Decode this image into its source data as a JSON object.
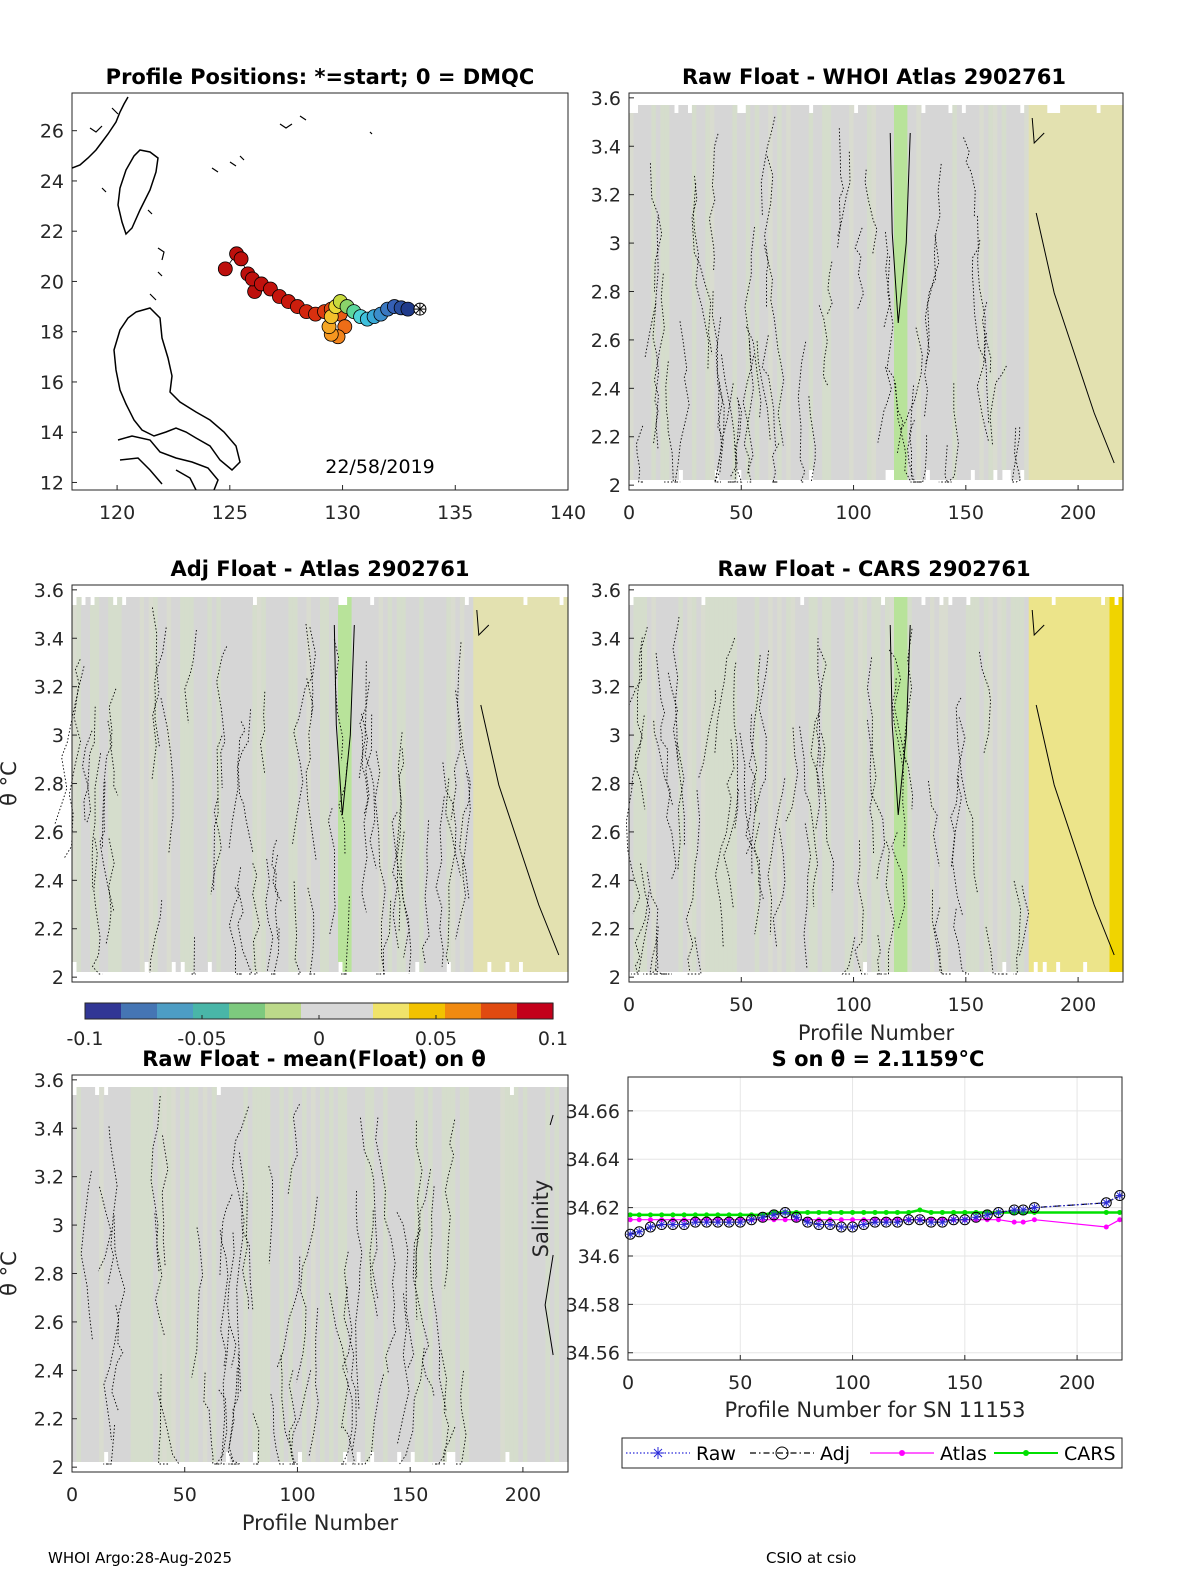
{
  "footer": {
    "left": "WHOI Argo:28-Aug-2025",
    "right": "CSIO at csio"
  },
  "colorbar": {
    "ticks": [
      "-0.1",
      "-0.05",
      "0",
      "0.05",
      "0.1"
    ],
    "range": [
      -0.1,
      0.1
    ],
    "colors": [
      "#313695",
      "#4575b4",
      "#4d9dc4",
      "#49b6a8",
      "#7dc97e",
      "#bcd98a",
      "#d8d8d8",
      "#d8d8d8",
      "#f0e36a",
      "#f2c200",
      "#f08a10",
      "#e04a10",
      "#c3001a"
    ]
  },
  "chart_data": [
    {
      "id": "positions",
      "type": "scatter",
      "title": "Profile Positions: *=start; 0 = DMQC",
      "xlim": [
        118,
        140
      ],
      "ylim": [
        11.7,
        27.5
      ],
      "xticks": [
        "120",
        "125",
        "130",
        "135",
        "140"
      ],
      "yticks": [
        "12",
        "14",
        "16",
        "18",
        "20",
        "22",
        "24",
        "26"
      ],
      "annotation": "22/58/2019",
      "track": {
        "lon": [
          132.9,
          132.6,
          132.3,
          132.0,
          131.7,
          131.4,
          131.1,
          130.8,
          130.5,
          130.2,
          129.9,
          129.7,
          129.5,
          129.4,
          129.5,
          129.8,
          130.1,
          129.9,
          129.5,
          129.2,
          128.8,
          128.4,
          128.0,
          127.6,
          127.2,
          126.8,
          126.4,
          126.0,
          125.8,
          126.1,
          125.5,
          125.3,
          124.8
        ],
        "lat": [
          18.9,
          18.95,
          19.0,
          18.9,
          18.7,
          18.6,
          18.5,
          18.6,
          18.8,
          19.0,
          19.2,
          19.0,
          18.6,
          18.2,
          17.9,
          17.8,
          18.2,
          18.7,
          18.9,
          18.8,
          18.7,
          18.8,
          19.0,
          19.2,
          19.4,
          19.7,
          19.9,
          20.1,
          20.3,
          19.6,
          20.9,
          21.1,
          20.5
        ],
        "colors": [
          "#1f3a8a",
          "#2a4fa0",
          "#3560b5",
          "#3a78c0",
          "#3b8fcc",
          "#3aa9d6",
          "#3ec0dc",
          "#4dd3d6",
          "#5bd79c",
          "#8ad36a",
          "#c7da3e",
          "#e9d836",
          "#f3c02b",
          "#f5a623",
          "#f59720",
          "#f2841c",
          "#ee6d17",
          "#e95b14",
          "#e44a12",
          "#de3c10",
          "#d8300f",
          "#d2260e",
          "#cc1e0d",
          "#c8180d",
          "#c5150d",
          "#c2120d",
          "#c0110d",
          "#be100d",
          "#bd100d",
          "#bd100d",
          "#bd100d",
          "#bd100d",
          "#bd100d"
        ]
      }
    },
    {
      "id": "raw_whoi",
      "type": "heatmap",
      "title": "Raw Float - WHOI Atlas  2902761",
      "xlim": [
        0,
        220
      ],
      "ylim": [
        1.98,
        3.62
      ],
      "xticks": [
        "0",
        "50",
        "100",
        "150",
        "200"
      ],
      "yticks": [
        "2",
        "2.2",
        "2.4",
        "2.6",
        "2.8",
        "3",
        "3.2",
        "3.4",
        "3.6"
      ],
      "xlabel": "",
      "ylabel": ""
    },
    {
      "id": "adj_atlas",
      "type": "heatmap",
      "title": "Adj Float - Atlas  2902761",
      "xlim": [
        0,
        220
      ],
      "ylim": [
        1.98,
        3.62
      ],
      "xticks": [],
      "yticks": [
        "2",
        "2.2",
        "2.4",
        "2.6",
        "2.8",
        "3",
        "3.2",
        "3.4",
        "3.6"
      ],
      "xlabel": "",
      "ylabel": "θ °C"
    },
    {
      "id": "raw_cars",
      "type": "heatmap",
      "title": "Raw Float - CARS  2902761",
      "xlim": [
        0,
        220
      ],
      "ylim": [
        1.98,
        3.62
      ],
      "xticks": [
        "0",
        "50",
        "100",
        "150",
        "200"
      ],
      "yticks": [
        "2",
        "2.2",
        "2.4",
        "2.6",
        "2.8",
        "3",
        "3.2",
        "3.4",
        "3.6"
      ],
      "xlabel": "Profile Number",
      "ylabel": ""
    },
    {
      "id": "raw_mean",
      "type": "heatmap",
      "title": "Raw Float - mean(Float) on θ",
      "xlim": [
        0,
        220
      ],
      "ylim": [
        1.98,
        3.62
      ],
      "xticks": [
        "0",
        "50",
        "100",
        "150",
        "200"
      ],
      "yticks": [
        "2",
        "2.2",
        "2.4",
        "2.6",
        "2.8",
        "3",
        "3.2",
        "3.4",
        "3.6"
      ],
      "xlabel": "Profile Number",
      "ylabel": "θ °C"
    },
    {
      "id": "salinity",
      "type": "line",
      "title": "S on θ = 2.1159°C",
      "xlim": [
        0,
        220
      ],
      "ylim": [
        34.557,
        34.674
      ],
      "xticks": [
        "0",
        "50",
        "100",
        "150",
        "200"
      ],
      "yticks": [
        "34.56",
        "34.58",
        "34.6",
        "34.62",
        "34.64",
        "34.66"
      ],
      "xlabel": "Profile Number for SN 11153",
      "ylabel": "Salinity",
      "legend": [
        "Raw",
        "Adj",
        "Atlas",
        "CARS"
      ],
      "x": [
        1,
        5,
        10,
        15,
        20,
        25,
        30,
        35,
        40,
        45,
        50,
        55,
        60,
        65,
        70,
        75,
        80,
        85,
        90,
        95,
        100,
        105,
        110,
        115,
        120,
        125,
        130,
        135,
        140,
        145,
        150,
        155,
        160,
        165,
        172,
        176,
        181,
        213,
        219
      ],
      "series": [
        {
          "name": "Raw",
          "color": "#2b2bd9",
          "values": [
            34.609,
            34.61,
            34.612,
            34.613,
            34.613,
            34.613,
            34.614,
            34.614,
            34.614,
            34.614,
            34.614,
            34.615,
            34.616,
            34.617,
            34.618,
            34.616,
            34.614,
            34.613,
            34.613,
            34.612,
            34.612,
            34.613,
            34.614,
            34.614,
            34.614,
            34.615,
            34.615,
            34.614,
            34.614,
            34.615,
            34.615,
            34.616,
            34.617,
            34.618,
            34.619,
            34.619,
            34.62,
            34.622,
            34.625
          ]
        },
        {
          "name": "Adj",
          "color": "#000000",
          "values": [
            34.609,
            34.61,
            34.612,
            34.613,
            34.613,
            34.613,
            34.614,
            34.614,
            34.614,
            34.614,
            34.614,
            34.615,
            34.616,
            34.617,
            34.618,
            34.616,
            34.614,
            34.613,
            34.613,
            34.612,
            34.612,
            34.613,
            34.614,
            34.614,
            34.614,
            34.615,
            34.615,
            34.614,
            34.614,
            34.615,
            34.615,
            34.616,
            34.617,
            34.618,
            34.619,
            34.619,
            34.62,
            34.622,
            34.625
          ]
        },
        {
          "name": "Atlas",
          "color": "#ff00ff",
          "values": [
            34.615,
            34.615,
            34.615,
            34.615,
            34.615,
            34.615,
            34.615,
            34.615,
            34.615,
            34.615,
            34.615,
            34.615,
            34.615,
            34.615,
            34.615,
            34.615,
            34.615,
            34.615,
            34.615,
            34.615,
            34.615,
            34.615,
            34.615,
            34.615,
            34.615,
            34.615,
            34.615,
            34.615,
            34.615,
            34.615,
            34.615,
            34.615,
            34.615,
            34.615,
            34.614,
            34.614,
            34.615,
            34.612,
            34.615
          ]
        },
        {
          "name": "CARS",
          "color": "#00e000",
          "values": [
            34.617,
            34.617,
            34.617,
            34.617,
            34.617,
            34.617,
            34.617,
            34.617,
            34.617,
            34.617,
            34.617,
            34.617,
            34.617,
            34.618,
            34.618,
            34.618,
            34.618,
            34.618,
            34.618,
            34.618,
            34.618,
            34.618,
            34.618,
            34.618,
            34.618,
            34.618,
            34.619,
            34.618,
            34.618,
            34.618,
            34.618,
            34.618,
            34.618,
            34.618,
            34.618,
            34.618,
            34.618,
            34.618,
            34.618
          ]
        }
      ]
    }
  ]
}
